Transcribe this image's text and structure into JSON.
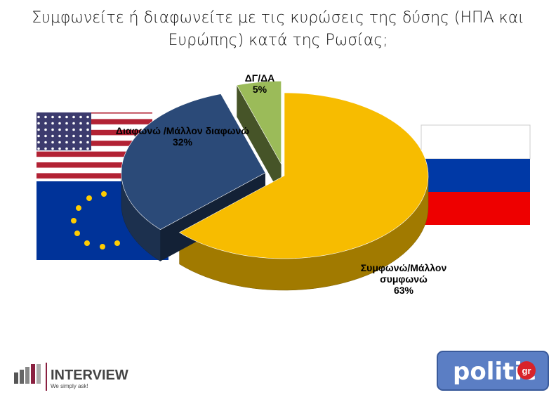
{
  "chart_data": {
    "type": "pie",
    "title": "Συμφωνείτε ή διαφωνείτε με τις κυρώσεις της δύσης  (ΗΠΑ και Ευρώπης) κατά της Ρωσίας;",
    "categories": [
      "Συμφωνώ/Μάλλον συμφωνώ",
      "Διαφωνώ /Μάλλον διαφωνώ",
      "ΔΓ/ΔΑ"
    ],
    "values": [
      63,
      32,
      5
    ],
    "value_labels": [
      "63%",
      "32%",
      "5%"
    ],
    "colors": [
      "#f7bc00",
      "#2b4a78",
      "#9bbb59"
    ]
  },
  "logos": {
    "interview": "INTERVIEW",
    "interview_tagline": "We simply ask!",
    "politic": "politic",
    "politic_suffix": "gr"
  }
}
